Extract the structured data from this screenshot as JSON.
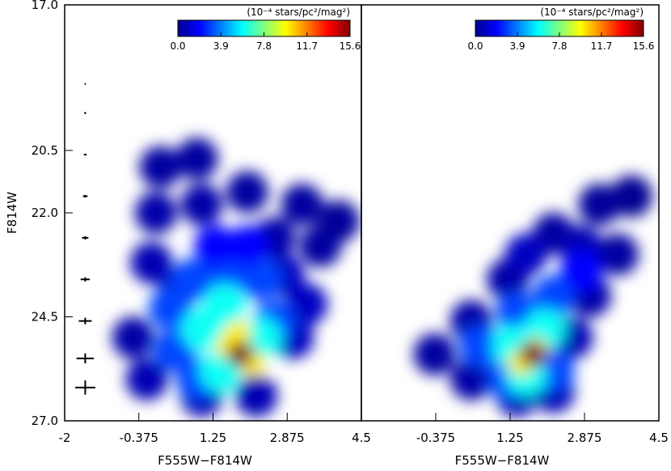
{
  "chart_data": [
    {
      "type": "density",
      "x_label": "F555W−F814W",
      "y_label": "F814W",
      "xlim": [
        -2,
        4.5
      ],
      "ylim": [
        27,
        17
      ],
      "xticks": [
        -2,
        -0.375,
        1.25,
        2.875,
        4.5
      ],
      "yticks": [
        {
          "value": 17,
          "label": "17.0"
        },
        20.5,
        {
          "value": 22,
          "label": "22.0"
        },
        24.5,
        {
          "value": 27,
          "label": "27.0"
        }
      ],
      "colorbar": {
        "label": "(10⁻⁴ stars/pc²/mag²)",
        "clim": [
          0,
          15.6
        ],
        "ticks": [
          {
            "value": 0,
            "label": "0.0"
          },
          3.9,
          7.8,
          11.7,
          15.6
        ]
      },
      "x": [
        0.1,
        0.9,
        2.0,
        3.2,
        0.0,
        1.0,
        2.6,
        3.6,
        -0.1,
        0.5,
        -0.5,
        -0.2,
        1.0,
        2.2,
        3.3,
        2.8,
        3.0,
        4.0,
        0.3,
        0.8,
        1.6,
        2.3,
        0.4,
        0.9,
        2.6,
        1.3,
        2.0,
        1.0,
        1.4,
        2.3,
        1.5,
        1.6,
        2.1,
        1.8,
        1.85
      ],
      "y": [
        20.9,
        20.7,
        21.5,
        21.8,
        22.0,
        21.8,
        22.6,
        22.8,
        23.2,
        23.8,
        25.0,
        26.0,
        26.4,
        26.4,
        24.2,
        23.5,
        25.0,
        22.2,
        24.3,
        23.6,
        23.4,
        23.6,
        25.3,
        26.0,
        24.6,
        22.8,
        22.8,
        24.8,
        25.8,
        25.0,
        24.2,
        25.2,
        25.6,
        24.9,
        25.4
      ],
      "density": [
        0.5,
        0.5,
        0.5,
        0.5,
        0.6,
        0.6,
        0.6,
        0.5,
        0.8,
        1,
        0.6,
        0.8,
        0.8,
        0.8,
        1,
        1,
        1,
        0.4,
        3,
        3,
        3,
        3,
        3,
        3,
        3,
        2,
        2,
        6,
        6,
        6,
        6,
        10,
        10,
        10,
        15.6
      ],
      "error_bars": {
        "x": -1.55,
        "y": [
          18.9,
          19.6,
          20.6,
          21.6,
          22.6,
          23.6,
          24.6,
          25.5,
          26.2
        ],
        "xerr": [
          0.01,
          0.02,
          0.03,
          0.05,
          0.07,
          0.1,
          0.14,
          0.19,
          0.22
        ],
        "yerr": [
          0.01,
          0.02,
          0.02,
          0.03,
          0.04,
          0.05,
          0.08,
          0.12,
          0.17
        ]
      }
    },
    {
      "type": "density",
      "x_label": "F555W−F814W",
      "xlim": [
        -2,
        4.5
      ],
      "ylim": [
        27,
        17
      ],
      "xticks": [
        -0.375,
        1.25,
        2.875,
        4.5
      ],
      "colorbar": {
        "label": "(10⁻⁴ stars/pc²/mag²)",
        "clim": [
          0,
          15.6
        ],
        "ticks": [
          {
            "value": 0,
            "label": "0.0"
          },
          3.9,
          7.8,
          11.7,
          15.6
        ]
      },
      "x": [
        -0.4,
        0.4,
        1.2,
        2.2,
        3.2,
        3.9,
        3.6,
        3.0,
        2.6,
        0.4,
        1.4,
        2.2,
        1.6,
        2.8,
        0.6,
        1.4,
        2.2,
        2.8,
        1.2,
        2.2,
        1.3,
        2.0,
        1.6,
        1.8,
        1.5,
        1.75
      ],
      "y": [
        25.4,
        24.6,
        23.6,
        22.5,
        21.8,
        21.6,
        23.0,
        24.0,
        25.0,
        26.0,
        26.4,
        26.3,
        23.0,
        22.8,
        25.2,
        24.4,
        24.0,
        23.4,
        26.0,
        25.8,
        25.2,
        24.8,
        25.9,
        25.3,
        25.6,
        25.4
      ],
      "density": [
        0.5,
        0.6,
        0.6,
        0.5,
        0.4,
        0.3,
        0.5,
        0.6,
        0.8,
        0.6,
        0.8,
        0.8,
        1,
        0.8,
        3,
        3,
        3,
        2,
        3,
        3,
        6,
        6,
        6,
        10,
        10,
        15.6
      ]
    }
  ]
}
